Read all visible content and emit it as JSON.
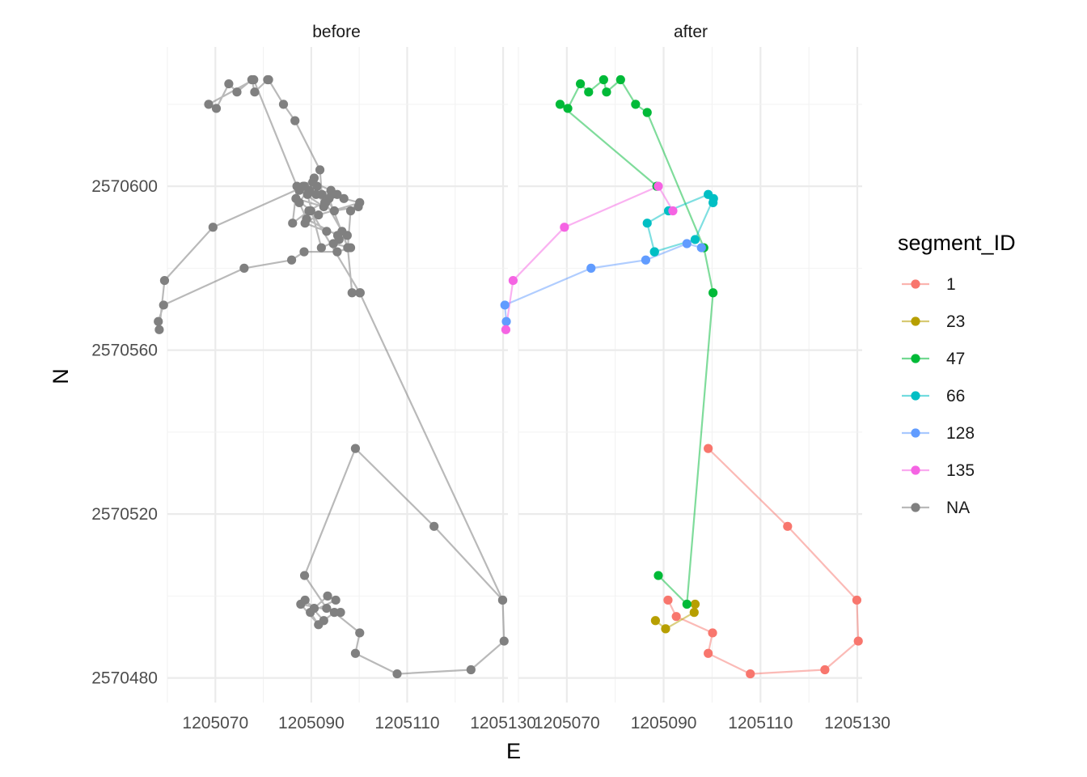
{
  "chart_data": {
    "type": "scatter",
    "facets": [
      "before",
      "after"
    ],
    "xlabel": "E",
    "ylabel": "N",
    "xlim": [
      1205060,
      1205131
    ],
    "ylim": [
      2570474,
      2570634
    ],
    "x_ticks": [
      1205070,
      1205090,
      1205110,
      1205130
    ],
    "y_ticks": [
      2570480,
      2570520,
      2570560,
      2570600
    ],
    "legend": {
      "title": "segment_ID",
      "position": "right",
      "entries": [
        {
          "label": "1",
          "color": "#F8766D"
        },
        {
          "label": "23",
          "color": "#B79F00"
        },
        {
          "label": "47",
          "color": "#00BA38"
        },
        {
          "label": "66",
          "color": "#00BFC4"
        },
        {
          "label": "128",
          "color": "#619CFF"
        },
        {
          "label": "135",
          "color": "#F564E3"
        },
        {
          "label": "NA",
          "color": "#808080"
        }
      ]
    },
    "before_track": [
      [
        1205129.9,
        2570499
      ],
      [
        1205130.2,
        2570489
      ],
      [
        1205123.3,
        2570482
      ],
      [
        1205107.9,
        2570481
      ],
      [
        1205099.2,
        2570486
      ],
      [
        1205100.1,
        2570491
      ],
      [
        1205094.8,
        2570496
      ],
      [
        1205092.6,
        2570494
      ],
      [
        1205088.7,
        2570499
      ],
      [
        1205090.6,
        2570497
      ],
      [
        1205093.4,
        2570500
      ],
      [
        1205095.1,
        2570499
      ],
      [
        1205089.8,
        2570496
      ],
      [
        1205091.5,
        2570493
      ],
      [
        1205087.8,
        2570498
      ],
      [
        1205096.1,
        2570496
      ],
      [
        1205093.2,
        2570497
      ],
      [
        1205088.6,
        2570505
      ],
      [
        1205099.2,
        2570536
      ],
      [
        1205115.6,
        2570517
      ],
      [
        1205129.9,
        2570499
      ],
      [
        1205100.1,
        2570574
      ],
      [
        1205089.9,
        2570594
      ],
      [
        1205086.8,
        2570597
      ],
      [
        1205092.6,
        2570595
      ],
      [
        1205087.5,
        2570599
      ],
      [
        1205094.3,
        2570598
      ],
      [
        1205096.8,
        2570597
      ],
      [
        1205100.1,
        2570596
      ],
      [
        1205091.5,
        2570593
      ],
      [
        1205088.7,
        2570591
      ],
      [
        1205093.2,
        2570589
      ],
      [
        1205097.5,
        2570588
      ],
      [
        1205095.8,
        2570587
      ],
      [
        1205092.1,
        2570585
      ],
      [
        1205089.2,
        2570598
      ],
      [
        1205091.2,
        2570600
      ],
      [
        1205093.7,
        2570597
      ],
      [
        1205097.6,
        2570585
      ],
      [
        1205098.2,
        2570594
      ],
      [
        1205099.8,
        2570595
      ],
      [
        1205094.8,
        2570594
      ],
      [
        1205090.6,
        2570602
      ],
      [
        1205088.3,
        2570600
      ],
      [
        1205089.6,
        2570599
      ],
      [
        1205092.2,
        2570598
      ],
      [
        1205091.8,
        2570604
      ],
      [
        1205086.6,
        2570616
      ],
      [
        1205084.2,
        2570620
      ],
      [
        1205081.1,
        2570626
      ],
      [
        1205080.9,
        2570626
      ],
      [
        1205078.2,
        2570623
      ],
      [
        1205077.6,
        2570626
      ],
      [
        1205074.5,
        2570623
      ],
      [
        1205072.8,
        2570625
      ],
      [
        1205070.2,
        2570619
      ],
      [
        1205068.6,
        2570620
      ],
      [
        1205078.0,
        2570626
      ],
      [
        1205087.0,
        2570600
      ],
      [
        1205086.1,
        2570591
      ],
      [
        1205089.5,
        2570594
      ],
      [
        1205095.4,
        2570598
      ],
      [
        1205092.8,
        2570596
      ],
      [
        1205091.0,
        2570598
      ],
      [
        1205094.1,
        2570599
      ],
      [
        1205090.3,
        2570601
      ],
      [
        1205087.5,
        2570596
      ],
      [
        1205089.0,
        2570592
      ],
      [
        1205095.5,
        2570588
      ],
      [
        1205094.6,
        2570586
      ],
      [
        1205098.2,
        2570585
      ],
      [
        1205095.4,
        2570584
      ],
      [
        1205088.5,
        2570584
      ],
      [
        1205085.9,
        2570582
      ],
      [
        1205076.0,
        2570580
      ],
      [
        1205059.2,
        2570571
      ],
      [
        1205058.1,
        2570567
      ],
      [
        1205058.3,
        2570565
      ],
      [
        1205059.4,
        2570577
      ],
      [
        1205069.5,
        2570590
      ],
      [
        1205088.6,
        2570600
      ],
      [
        1205093.0,
        2570596
      ],
      [
        1205096.4,
        2570589
      ],
      [
        1205097.6,
        2570585
      ],
      [
        1205098.5,
        2570574
      ],
      [
        1205100.2,
        2570574
      ]
    ],
    "series": [
      {
        "name": "1",
        "points": [
          [
            1205099.2,
            2570536
          ],
          [
            1205115.6,
            2570517
          ],
          [
            1205129.9,
            2570499
          ],
          [
            1205130.2,
            2570489
          ],
          [
            1205123.3,
            2570482
          ],
          [
            1205107.9,
            2570481
          ],
          [
            1205099.2,
            2570486
          ],
          [
            1205100.1,
            2570491
          ],
          [
            1205092.6,
            2570495
          ],
          [
            1205090.9,
            2570499
          ]
        ]
      },
      {
        "name": "23",
        "points": [
          [
            1205088.3,
            2570494
          ],
          [
            1205090.4,
            2570492
          ],
          [
            1205096.3,
            2570496
          ],
          [
            1205096.5,
            2570498
          ]
        ]
      },
      {
        "name": "47",
        "points": [
          [
            1205088.9,
            2570505
          ],
          [
            1205094.8,
            2570498
          ],
          [
            1205100.2,
            2570574
          ],
          [
            1205098.3,
            2570585
          ],
          [
            1205086.6,
            2570618
          ],
          [
            1205084.2,
            2570620
          ],
          [
            1205081.1,
            2570626
          ],
          [
            1205078.2,
            2570623
          ],
          [
            1205077.6,
            2570626
          ],
          [
            1205074.5,
            2570623
          ],
          [
            1205072.8,
            2570625
          ],
          [
            1205070.2,
            2570619
          ],
          [
            1205068.6,
            2570620
          ],
          [
            1205088.6,
            2570600
          ]
        ]
      },
      {
        "name": "66",
        "points": [
          [
            1205088.1,
            2570584
          ],
          [
            1205086.6,
            2570591
          ],
          [
            1205091.0,
            2570594
          ],
          [
            1205099.2,
            2570598
          ],
          [
            1205100.2,
            2570596
          ],
          [
            1205100.3,
            2570597
          ],
          [
            1205096.5,
            2570587
          ],
          [
            1205088.1,
            2570584
          ]
        ]
      },
      {
        "name": "128",
        "points": [
          [
            1205097.8,
            2570585
          ],
          [
            1205094.8,
            2570586
          ],
          [
            1205086.3,
            2570582
          ],
          [
            1205075.0,
            2570580
          ],
          [
            1205057.2,
            2570571
          ],
          [
            1205057.5,
            2570567
          ]
        ]
      },
      {
        "name": "135",
        "points": [
          [
            1205057.4,
            2570565
          ],
          [
            1205058.9,
            2570577
          ],
          [
            1205069.5,
            2570590
          ],
          [
            1205088.9,
            2570600
          ],
          [
            1205091.9,
            2570594
          ]
        ]
      },
      {
        "name": "NA",
        "points": []
      }
    ]
  }
}
